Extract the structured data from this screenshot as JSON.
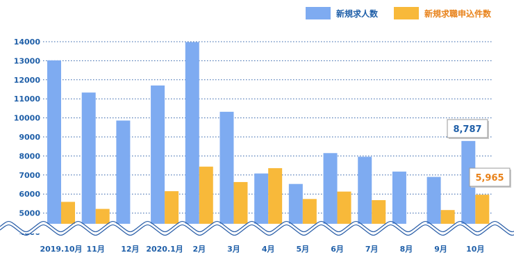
{
  "colors": {
    "bar_jobs": "#7eabf1",
    "bar_seekers": "#f8b93a",
    "axis_text": "#1f5fa8",
    "grid": "#2a5ea8",
    "callout_jobs_text": "#1f5fa8",
    "callout_seekers_text": "#e8821a"
  },
  "chart_data": {
    "type": "bar",
    "title": "",
    "xlabel": "",
    "ylabel": "",
    "ylim": [
      4000,
      14000
    ],
    "yticks": [
      4000,
      5000,
      6000,
      7000,
      8000,
      9000,
      10000,
      11000,
      12000,
      13000,
      14000
    ],
    "grid": true,
    "axis_break": true,
    "legend_position": "top-right",
    "categories": [
      "2019.10月",
      "11月",
      "12月",
      "2020.1月",
      "2月",
      "3月",
      "4月",
      "5月",
      "6月",
      "7月",
      "8月",
      "9月",
      "10月"
    ],
    "series": [
      {
        "name": "新規求人数",
        "color": "#7eabf1",
        "values": [
          13020,
          11330,
          9860,
          11700,
          13980,
          10320,
          7080,
          6530,
          8150,
          7960,
          7180,
          6900,
          8787
        ]
      },
      {
        "name": "新規求職申込件数",
        "color": "#f8b93a",
        "values": [
          5590,
          5220,
          4300,
          6150,
          7440,
          6630,
          7360,
          5740,
          6130,
          5680,
          4360,
          5160,
          5965
        ]
      }
    ],
    "annotations": [
      {
        "series": 0,
        "index": 12,
        "text": "8,787"
      },
      {
        "series": 1,
        "index": 12,
        "text": "5,965"
      }
    ]
  }
}
